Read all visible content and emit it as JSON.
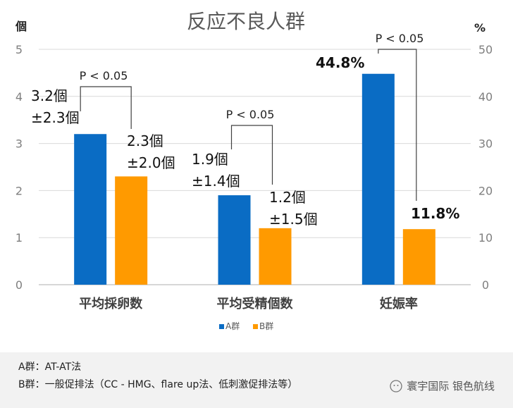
{
  "chart_data": {
    "type": "bar",
    "title": "反应不良人群",
    "categories": [
      "平均採卵数",
      "平均受精個数",
      "妊娠率"
    ],
    "left_axis_unit": "個",
    "right_axis_unit": "%",
    "left_ylim": [
      0,
      5
    ],
    "right_ylim": [
      0,
      50
    ],
    "left_ticks": [
      0,
      1,
      2,
      3,
      4,
      5
    ],
    "right_ticks": [
      0,
      10,
      20,
      30,
      40,
      50
    ],
    "grid": true,
    "legend_position": "bottom",
    "series": [
      {
        "name": "A群",
        "color": "#0a6cc4",
        "values": [
          3.2,
          1.9,
          44.8
        ],
        "axes": [
          "left",
          "left",
          "right"
        ]
      },
      {
        "name": "B群",
        "color": "#ff9a00",
        "values": [
          2.3,
          1.2,
          11.8
        ],
        "axes": [
          "left",
          "left",
          "right"
        ]
      }
    ],
    "data_labels": {
      "A": [
        [
          "3.2個",
          "±2.3個"
        ],
        [
          "1.9個",
          "±1.4個"
        ],
        [
          "44.8%"
        ]
      ],
      "B": [
        [
          "2.3個",
          "±2.0個"
        ],
        [
          "1.2個",
          "±1.5個"
        ],
        [
          "11.8%"
        ]
      ]
    },
    "annotations": [
      "P < 0.05",
      "P < 0.05",
      "P < 0.05"
    ]
  },
  "footer": {
    "line1": "A群：AT-AT法",
    "line2": "B群：一般促排法（CC - HMG、flare up法、低刺激促排法等）",
    "watermark": "寰宇国际 银色航线"
  }
}
